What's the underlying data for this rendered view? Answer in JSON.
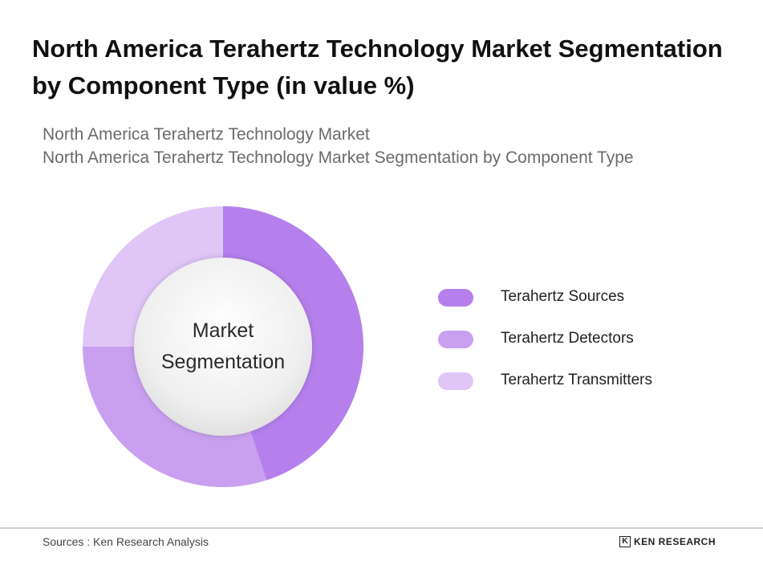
{
  "title": "North America Terahertz Technology Market Segmentation by Component Type (in value %)",
  "subtitle_lines": [
    "North America Terahertz Technology Market",
    "North America Terahertz Technology Market Segmentation by Component Type"
  ],
  "chart_data": {
    "type": "pie",
    "variant": "donut",
    "center_label": [
      "Market",
      "Segmentation"
    ],
    "categories": [
      "Terahertz Sources",
      "Terahertz Detectors",
      "Terahertz Transmitters"
    ],
    "values": [
      45,
      30,
      25
    ],
    "colors": [
      "#b580ec",
      "#c9a0f0",
      "#dfc6f7"
    ],
    "legend_position": "right"
  },
  "footer": {
    "source": "Sources : Ken Research Analysis",
    "brand": "KEN RESEARCH",
    "brand_mark": "K"
  }
}
